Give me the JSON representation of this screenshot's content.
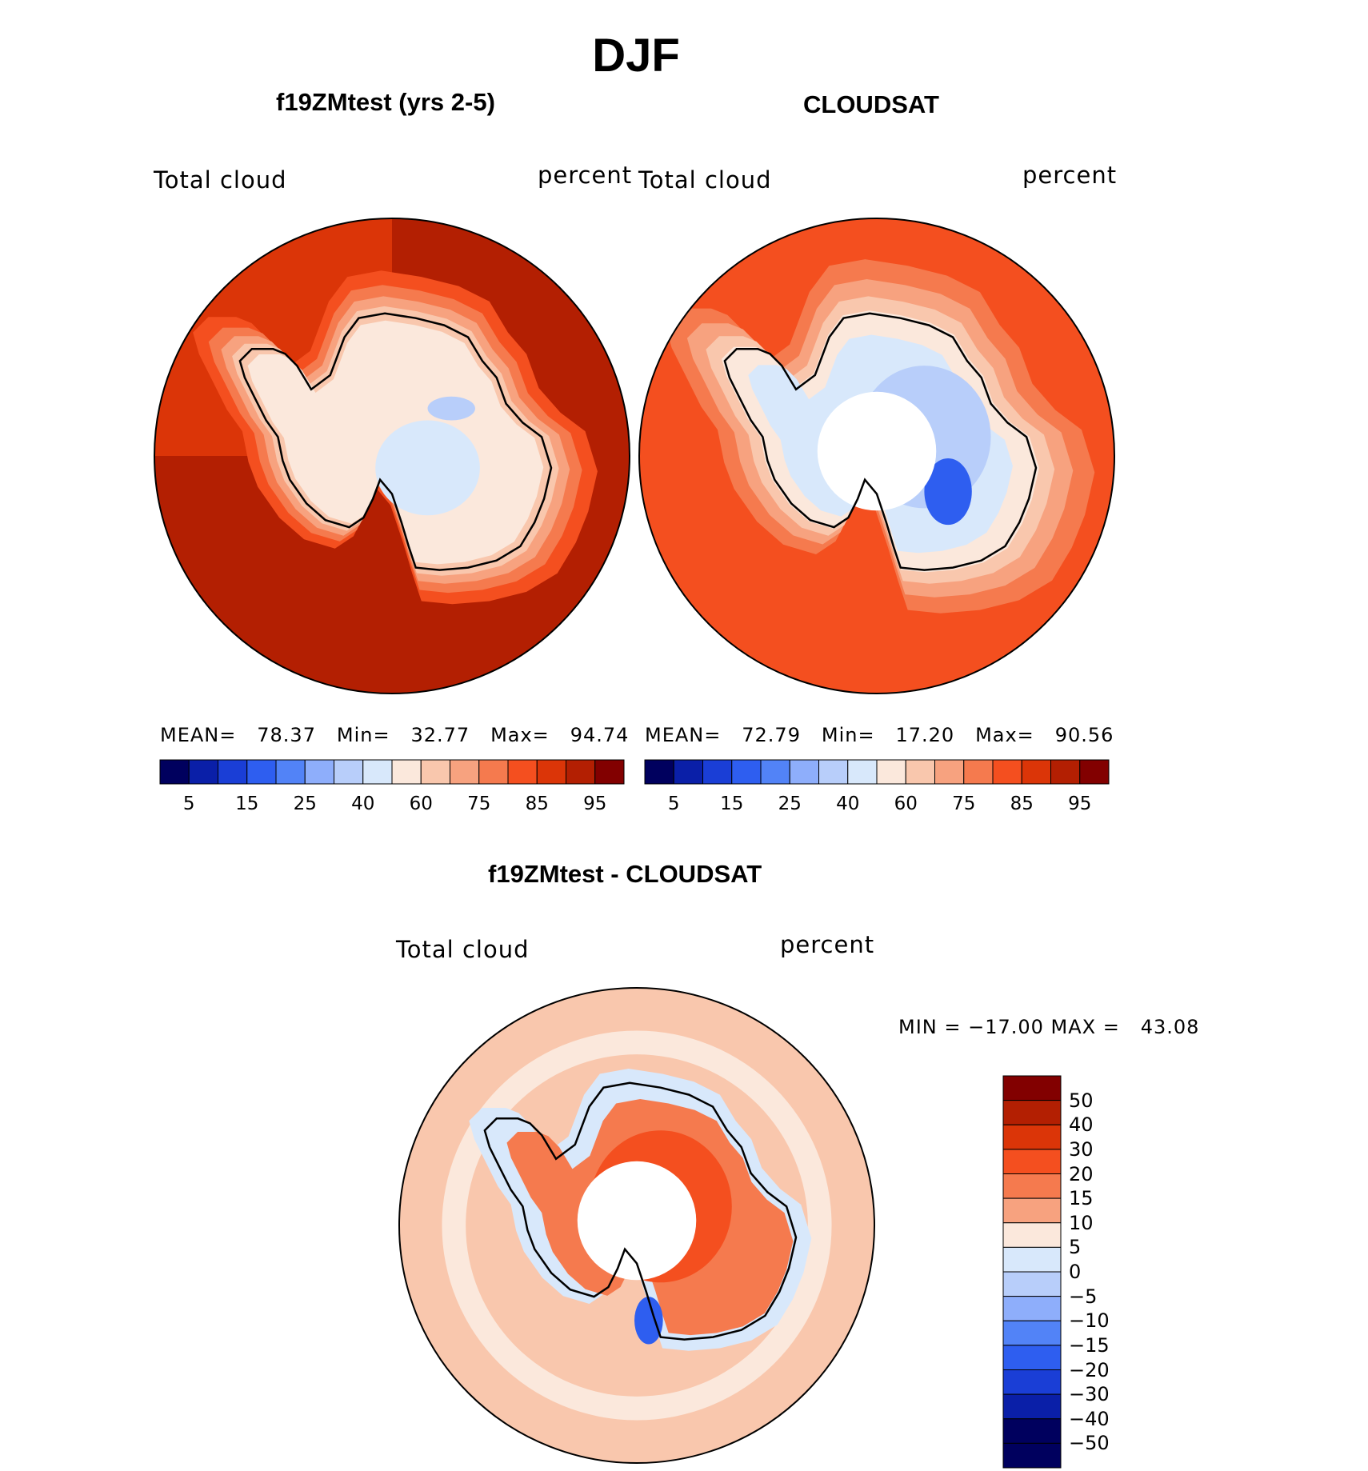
{
  "main_title": "DJF",
  "chart_data": [
    {
      "type": "heatmap",
      "projection": "south-polar-stereographic",
      "title": "f19ZMtest (yrs 2-5)",
      "left_label": "Total cloud",
      "right_label": "percent",
      "stats": {
        "mean_label": "MEAN=",
        "mean": "78.37",
        "min_label": "Min=",
        "min": "32.77",
        "max_label": "Max=",
        "max": "94.74"
      },
      "colorbar": {
        "levels": [
          5,
          10,
          15,
          20,
          25,
          30,
          40,
          50,
          60,
          70,
          75,
          80,
          85,
          90,
          95
        ],
        "tick_labels": [
          "5",
          "15",
          "25",
          "40",
          "60",
          "75",
          "85",
          "95"
        ],
        "colors": [
          "#00005e",
          "#0a1fa8",
          "#1a3ed6",
          "#2e5ef0",
          "#5283f7",
          "#8eaefb",
          "#b8cefa",
          "#d8e8fb",
          "#fbe8dc",
          "#f9c7ad",
          "#f7a27f",
          "#f57a4e",
          "#f44f1f",
          "#db3508",
          "#b31f02",
          "#820000"
        ]
      },
      "field_colors": {
        "ocean_far": "#b31f02",
        "ocean_mid": "#db3508",
        "coast_1": "#f44f1f",
        "coast_2": "#f57a4e",
        "coast_3": "#f7a27f",
        "coast_4": "#f9c7ad",
        "interior": "#fbe8dc",
        "interior_low": "#d8e8fb",
        "interior_lower": "#b8cefa"
      }
    },
    {
      "type": "heatmap",
      "projection": "south-polar-stereographic",
      "title": "CLOUDSAT",
      "left_label": "Total cloud",
      "right_label": "percent",
      "stats": {
        "mean_label": "MEAN=",
        "mean": "72.79",
        "min_label": "Min=",
        "min": "17.20",
        "max_label": "Max=",
        "max": "90.56"
      },
      "colorbar": {
        "levels": [
          5,
          10,
          15,
          20,
          25,
          30,
          40,
          50,
          60,
          70,
          75,
          80,
          85,
          90,
          95
        ],
        "tick_labels": [
          "5",
          "15",
          "25",
          "40",
          "60",
          "75",
          "85",
          "95"
        ],
        "colors": [
          "#00005e",
          "#0a1fa8",
          "#1a3ed6",
          "#2e5ef0",
          "#5283f7",
          "#8eaefb",
          "#b8cefa",
          "#d8e8fb",
          "#fbe8dc",
          "#f9c7ad",
          "#f7a27f",
          "#f57a4e",
          "#f44f1f",
          "#db3508",
          "#b31f02",
          "#820000"
        ]
      },
      "field_colors": {
        "ocean_far": "#f44f1f",
        "ocean_mid": "#db3508",
        "coast_1": "#f57a4e",
        "coast_2": "#f7a27f",
        "coast_3": "#f9c7ad",
        "interior": "#fbe8dc",
        "interior_low": "#d8e8fb",
        "interior_lower": "#b8cefa",
        "minimum": "#2e5ef0",
        "missing": "#ffffff"
      }
    },
    {
      "type": "heatmap",
      "projection": "south-polar-stereographic",
      "title": "f19ZMtest - CLOUDSAT",
      "left_label": "Total cloud",
      "right_label": "percent",
      "stats_line": "MIN = −17.00 MAX =   43.08",
      "colorbar": {
        "orientation": "vertical",
        "tick_labels": [
          "50",
          "40",
          "30",
          "20",
          "15",
          "10",
          "5",
          "0",
          "−5",
          "−10",
          "−15",
          "−20",
          "−30",
          "−40",
          "−50"
        ],
        "colors": [
          "#820000",
          "#b31f02",
          "#db3508",
          "#f44f1f",
          "#f57a4e",
          "#f7a27f",
          "#fbe8dc",
          "#d8e8fb",
          "#b8cefa",
          "#8eaefb",
          "#5283f7",
          "#2e5ef0",
          "#1a3ed6",
          "#0a1fa8",
          "#00005e",
          "#00005e"
        ]
      },
      "field_colors": {
        "ocean": "#f9c7ad",
        "ocean_light": "#fbe8dc",
        "ocean_warm": "#f7a27f",
        "interior_high": "#f44f1f",
        "interior_mid": "#f57a4e",
        "coast_neg": "#d8e8fb",
        "coast_neg2": "#b8cefa",
        "minimum": "#2e5ef0",
        "missing": "#ffffff"
      }
    }
  ]
}
